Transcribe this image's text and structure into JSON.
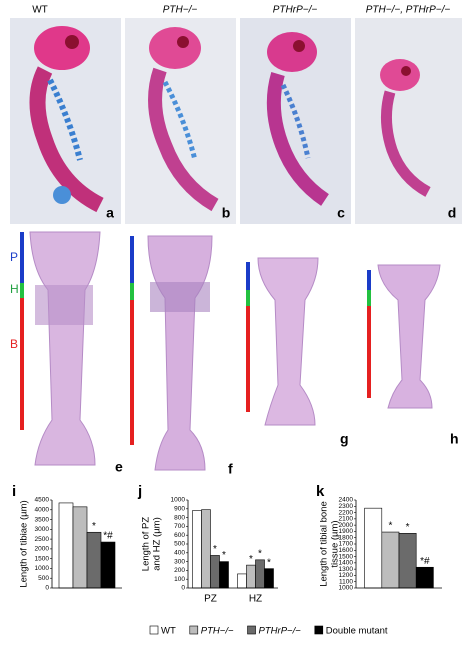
{
  "photos": {
    "genotypes": [
      "WT",
      "PTH−/−",
      "PTHrP−/−",
      "PTH−/−, PTHrP−/−"
    ],
    "panels": [
      "a",
      "b",
      "c",
      "d"
    ]
  },
  "sections": {
    "panels": [
      "e",
      "f",
      "g",
      "h"
    ],
    "zones": [
      "P",
      "H",
      "B"
    ]
  },
  "chart_data": [
    {
      "type": "bar",
      "panel": "i",
      "ylabel": [
        "Length of tibiae (µm)"
      ],
      "categories": [
        null
      ],
      "series": [
        {
          "name": "WT",
          "color": "#ffffff",
          "values": [
            4350
          ]
        },
        {
          "name": "PTH−/−",
          "color": "#bdbdbd",
          "values": [
            4150
          ]
        },
        {
          "name": "PTHrP−/−",
          "color": "#6b6b6b",
          "values": [
            2850
          ],
          "annotations": [
            "*"
          ]
        },
        {
          "name": "Double mutant",
          "color": "#000000",
          "values": [
            2350
          ],
          "annotations": [
            "*#"
          ]
        }
      ],
      "ylim": [
        0,
        4500
      ],
      "yticks": [
        0,
        500,
        1000,
        1500,
        2000,
        2500,
        3000,
        3500,
        4000,
        4500
      ]
    },
    {
      "type": "bar",
      "panel": "j",
      "ylabel": [
        "Length of PZ",
        "and HZ (µm)"
      ],
      "categories": [
        "PZ",
        "HZ"
      ],
      "series": [
        {
          "color": "#ffffff",
          "values": [
            880,
            160
          ]
        },
        {
          "color": "#bdbdbd",
          "values": [
            890,
            260
          ],
          "annotations": [
            null,
            "*"
          ]
        },
        {
          "color": "#6b6b6b",
          "values": [
            370,
            320
          ],
          "annotations": [
            "*",
            "*"
          ]
        },
        {
          "color": "#000000",
          "values": [
            300,
            220
          ],
          "annotations": [
            "*",
            "*"
          ]
        }
      ],
      "ylim": [
        0,
        1000
      ],
      "yticks": [
        0,
        100,
        200,
        300,
        400,
        500,
        600,
        700,
        800,
        900,
        1000
      ]
    },
    {
      "type": "bar",
      "panel": "k",
      "ylabel": [
        "Length of tibial bone",
        "tissue (µm)"
      ],
      "categories": [
        null
      ],
      "series": [
        {
          "color": "#ffffff",
          "values": [
            2270
          ]
        },
        {
          "color": "#bdbdbd",
          "values": [
            1890
          ],
          "annotations": [
            "*"
          ]
        },
        {
          "color": "#6b6b6b",
          "values": [
            1870
          ],
          "annotations": [
            "*"
          ]
        },
        {
          "color": "#000000",
          "values": [
            1330
          ],
          "annotations": [
            "*#"
          ]
        }
      ],
      "ylim": [
        1000,
        2400
      ],
      "yticks": [
        1000,
        1100,
        1200,
        1300,
        1400,
        1500,
        1600,
        1700,
        1800,
        1900,
        2000,
        2100,
        2200,
        2300,
        2400
      ]
    }
  ]
}
